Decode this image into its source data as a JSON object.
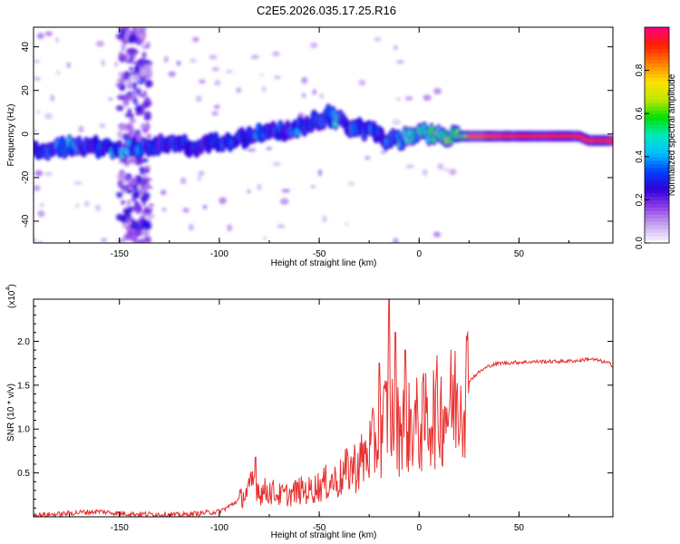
{
  "page_title": "C2E5.2026.035.17.25.R16",
  "chart_data": [
    {
      "type": "heatmap",
      "title": "C2E5.2026.035.17.25.R16",
      "xlabel": "Height of straight line (km)",
      "ylabel": "Frequency (Hz)",
      "xlim": [
        -193,
        97
      ],
      "ylim": [
        -50,
        49
      ],
      "x_ticks": [
        -150,
        -100,
        -50,
        0,
        50
      ],
      "x_tick_labels": [
        "-150",
        "-100",
        "-50",
        "0",
        "50"
      ],
      "y_ticks": [
        -40,
        -20,
        0,
        20,
        40
      ],
      "y_tick_labels": [
        "-40",
        "-20",
        "0",
        "20",
        "40"
      ],
      "colorbar": {
        "label": "Normalized spectral amplitude",
        "range": [
          0,
          1
        ],
        "ticks": [
          0.0,
          0.2,
          0.4,
          0.6,
          0.8
        ],
        "tick_labels": [
          "0.0",
          "0.2",
          "0.4",
          "0.6",
          "0.8"
        ],
        "colors": [
          "#ffffff",
          "#c8a8f0",
          "#9040e8",
          "#3000d8",
          "#0040ff",
          "#00c0ff",
          "#00e8c0",
          "#00e000",
          "#c0e800",
          "#ffe000",
          "#ff8000",
          "#ff2000",
          "#ff0080"
        ]
      },
      "ridge": {
        "x": [
          -193,
          -180,
          -170,
          -160,
          -150,
          -140,
          -130,
          -120,
          -110,
          -100,
          -90,
          -80,
          -70,
          -60,
          -50,
          -45,
          -40,
          -35,
          -30,
          -25,
          -20,
          -15,
          -10,
          -5,
          0,
          10,
          20,
          30,
          40,
          50,
          60,
          70,
          80,
          85,
          90,
          97
        ],
        "freq": [
          -7,
          -6,
          -6,
          -6,
          -7,
          -6,
          -5,
          -5,
          -6,
          -4,
          -2,
          0,
          1,
          3,
          6,
          8,
          6,
          3,
          2,
          2,
          -1,
          -3,
          -3,
          -1,
          0,
          -1,
          -1,
          -1,
          -1,
          -1,
          -1,
          -1,
          -1,
          -3,
          -3,
          -3
        ],
        "amplitude": [
          0.25,
          0.35,
          0.35,
          0.3,
          0.4,
          0.35,
          0.25,
          0.35,
          0.3,
          0.3,
          0.3,
          0.35,
          0.3,
          0.35,
          0.3,
          0.35,
          0.45,
          0.3,
          0.35,
          0.35,
          0.3,
          0.35,
          0.4,
          0.45,
          0.5,
          0.55,
          0.6,
          0.75,
          0.85,
          0.9,
          0.9,
          0.9,
          0.9,
          0.85,
          0.9,
          0.9
        ]
      },
      "noise_band_x": [
        -150,
        -135
      ]
    },
    {
      "type": "line",
      "title": "",
      "xlabel": "Height of straight line (km)",
      "ylabel": "SNR (10 * v/v)",
      "scale_label": "(x10",
      "scale_exponent": "4",
      "scale_close": ")",
      "xlim": [
        -193,
        97
      ],
      "ylim": [
        0,
        2.48
      ],
      "x_ticks": [
        -150,
        -100,
        -50,
        0,
        50
      ],
      "x_tick_labels": [
        "-150",
        "-100",
        "-50",
        "0",
        "50"
      ],
      "y_ticks": [
        0.5,
        1.0,
        1.5,
        2.0
      ],
      "y_tick_labels": [
        "0.5",
        "1.0",
        "1.5",
        "2.0"
      ],
      "color": "#e83030",
      "series": [
        {
          "name": "SNR",
          "x": [
            -193,
            -180,
            -170,
            -160,
            -150,
            -140,
            -130,
            -120,
            -110,
            -100,
            -95,
            -90,
            -85,
            -82,
            -80,
            -75,
            -70,
            -65,
            -60,
            -55,
            -50,
            -45,
            -40,
            -35,
            -30,
            -25,
            -20,
            -17,
            -15,
            -13,
            -10,
            -8,
            -5,
            -3,
            0,
            5,
            10,
            15,
            20,
            25,
            30,
            35,
            40,
            50,
            60,
            70,
            80,
            85,
            90,
            95,
            97
          ],
          "y": [
            0.02,
            0.03,
            0.05,
            0.06,
            0.04,
            0.03,
            0.03,
            0.02,
            0.04,
            0.06,
            0.12,
            0.2,
            0.3,
            0.45,
            0.28,
            0.3,
            0.25,
            0.25,
            0.3,
            0.3,
            0.35,
            0.4,
            0.42,
            0.55,
            0.6,
            0.75,
            0.9,
            1.1,
            1.3,
            1.05,
            1.0,
            1.2,
            1.0,
            1.1,
            1.0,
            1.15,
            1.2,
            1.25,
            1.4,
            1.55,
            1.65,
            1.72,
            1.75,
            1.76,
            1.77,
            1.77,
            1.78,
            1.8,
            1.78,
            1.75,
            1.72
          ]
        }
      ],
      "spikes": [
        {
          "x": -82,
          "y": 0.68
        },
        {
          "x": -20,
          "y": 1.75
        },
        {
          "x": -15,
          "y": 2.48
        },
        {
          "x": -12,
          "y": 2.1
        },
        {
          "x": -7,
          "y": 1.9
        }
      ]
    }
  ]
}
